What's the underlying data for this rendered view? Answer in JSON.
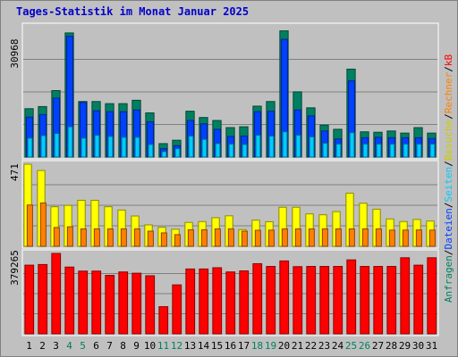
{
  "chart_data": {
    "type": "bar",
    "title": "Tages-Statistik im Monat Januar 2025",
    "categories": [
      "1",
      "2",
      "3",
      "4",
      "5",
      "6",
      "7",
      "8",
      "9",
      "10",
      "11",
      "12",
      "13",
      "14",
      "15",
      "16",
      "17",
      "18",
      "19",
      "20",
      "21",
      "22",
      "23",
      "24",
      "25",
      "26",
      "27",
      "28",
      "29",
      "30",
      "31"
    ],
    "weekend_days": [
      "4",
      "5",
      "11",
      "12",
      "18",
      "19",
      "25",
      "26"
    ],
    "panels": [
      {
        "name": "top",
        "max_label": "30968",
        "ylim": [
          0,
          30968
        ],
        "series": [
          {
            "name": "Anfragen",
            "color": "#008060",
            "values": [
              11500,
              12000,
              15800,
              29500,
              13200,
              13200,
              12700,
              12700,
              13500,
              10500,
              3200,
              4000,
              10900,
              9400,
              8700,
              7000,
              7200,
              12100,
              13200,
              30000,
              15500,
              11700,
              7600,
              6600,
              20900,
              6000,
              5900,
              6200,
              5700,
              7000,
              5700
            ]
          },
          {
            "name": "Dateien",
            "color": "#0040ff",
            "values": [
              9500,
              10100,
              14000,
              28700,
              13000,
              11000,
              10800,
              10800,
              11200,
              8400,
              2000,
              2700,
              8700,
              7900,
              6600,
              4900,
              5000,
              10800,
              10900,
              28000,
              11200,
              9800,
              6200,
              4300,
              18100,
              4600,
              4700,
              4600,
              4600,
              4600,
              4400
            ]
          },
          {
            "name": "Seiten",
            "color": "#00ccff",
            "values": [
              4500,
              5100,
              5600,
              7200,
              4500,
              5200,
              4900,
              4700,
              4700,
              3000,
              1300,
              2000,
              5000,
              4200,
              3200,
              3100,
              3000,
              5200,
              5000,
              6000,
              5200,
              4800,
              3300,
              3100,
              5800,
              3100,
              3100,
              3100,
              3100,
              3100,
              3100
            ]
          }
        ]
      },
      {
        "name": "middle",
        "max_label": "471",
        "ylim": [
          0,
          471
        ],
        "series": [
          {
            "name": "Besuche",
            "color": "#ffff00",
            "values": [
              471,
              435,
              227,
              235,
              264,
              264,
              227,
              208,
              174,
              123,
              109,
              98,
              137,
              142,
              164,
              175,
              96,
              150,
              141,
              224,
              224,
              186,
              181,
              199,
              305,
              247,
              213,
              157,
              142,
              154,
              145
            ]
          },
          {
            "name": "Rechner",
            "color": "#ff8000",
            "values": [
              237,
              249,
              108,
              112,
              100,
              100,
              100,
              100,
              100,
              87,
              77,
              67,
              95,
              95,
              100,
              100,
              87,
              92,
              93,
              100,
              100,
              100,
              100,
              100,
              100,
              100,
              100,
              93,
              93,
              94,
              93
            ]
          }
        ]
      },
      {
        "name": "bottom",
        "max_label": "379265",
        "ylim": [
          0,
          379265
        ],
        "series": [
          {
            "name": "kB",
            "color": "#ff0000",
            "values": [
              324000,
              327000,
              379265,
              315000,
              296000,
              296000,
              276000,
              292000,
              286000,
              274000,
              128000,
              231000,
              306000,
              306000,
              312000,
              292000,
              297000,
              331000,
              318000,
              344000,
              317000,
              318000,
              318000,
              318000,
              349000,
              318000,
              318000,
              318000,
              359000,
              324000,
              359000
            ]
          }
        ]
      }
    ],
    "right_labels": [
      {
        "text": "Anfragen",
        "color": "#008060"
      },
      {
        "text": "/",
        "color": "#000000"
      },
      {
        "text": "Dateien",
        "color": "#0040ff"
      },
      {
        "text": "/",
        "color": "#000000"
      },
      {
        "text": "Seiten",
        "color": "#00ccff"
      },
      {
        "text": "/",
        "color": "#000000"
      },
      {
        "text": "Besuche",
        "color": "#cccc00"
      },
      {
        "text": "/",
        "color": "#000000"
      },
      {
        "text": "Rechner",
        "color": "#ff8000"
      },
      {
        "text": "/",
        "color": "#000000"
      },
      {
        "text": "kB",
        "color": "#ff0000"
      }
    ],
    "colors": {
      "background": "#c0c0c0",
      "outer": "#ffffff",
      "grid": "#808080",
      "x_label_weekday": "#000000",
      "x_label_weekend": "#008060"
    }
  }
}
